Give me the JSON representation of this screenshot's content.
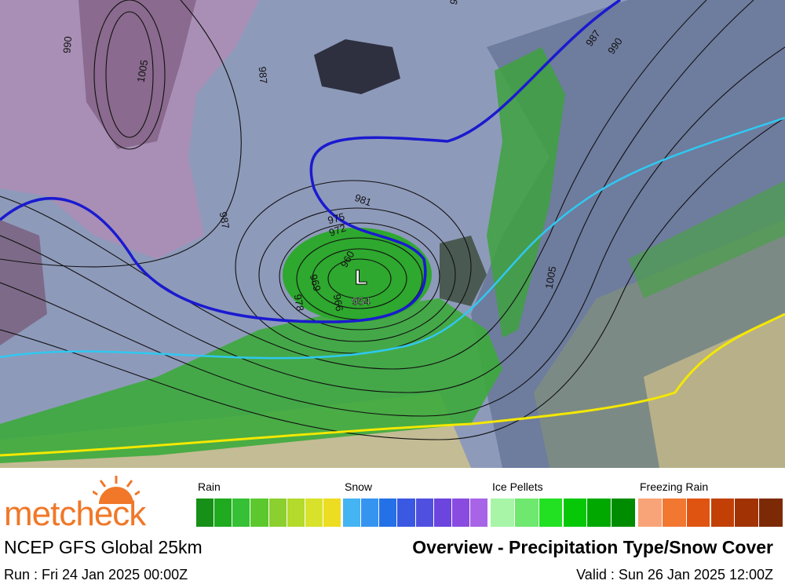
{
  "map": {
    "isobar_labels": [
      "1005",
      "987",
      "987",
      "981",
      "975",
      "972",
      "969",
      "978",
      "966",
      "960",
      "954",
      "1005",
      "987",
      "990",
      "978",
      "990"
    ],
    "low": {
      "symbol": "L",
      "pressure": "954"
    }
  },
  "legend": [
    {
      "label": "Rain",
      "colors": [
        "#169016",
        "#1faa1f",
        "#35c035",
        "#5cc82e",
        "#8cd030",
        "#b4da2c",
        "#d8e22a",
        "#ecdc22"
      ]
    },
    {
      "label": "Snow",
      "colors": [
        "#45b4f2",
        "#3594f0",
        "#2470e6",
        "#3a58e2",
        "#5050e0",
        "#6c44de",
        "#8a4ce0",
        "#a864e6"
      ]
    },
    {
      "label": "Ice Pellets",
      "colors": [
        "#a8f5a8",
        "#6ee86e",
        "#22e022",
        "#06c806",
        "#00a800",
        "#008c00"
      ]
    },
    {
      "label": "Freezing Rain",
      "colors": [
        "#f8a478",
        "#f27832",
        "#e05412",
        "#c24006",
        "#a03204",
        "#7c2a06"
      ]
    }
  ],
  "footer": {
    "brand": "metcheck",
    "model": "NCEP GFS Global 25km",
    "title": "Overview - Precipitation Type/Snow Cover",
    "run": "Run : Fri 24 Jan 2025 00:00Z",
    "valid": "Valid : Sun 26 Jan 2025 12:00Z"
  }
}
